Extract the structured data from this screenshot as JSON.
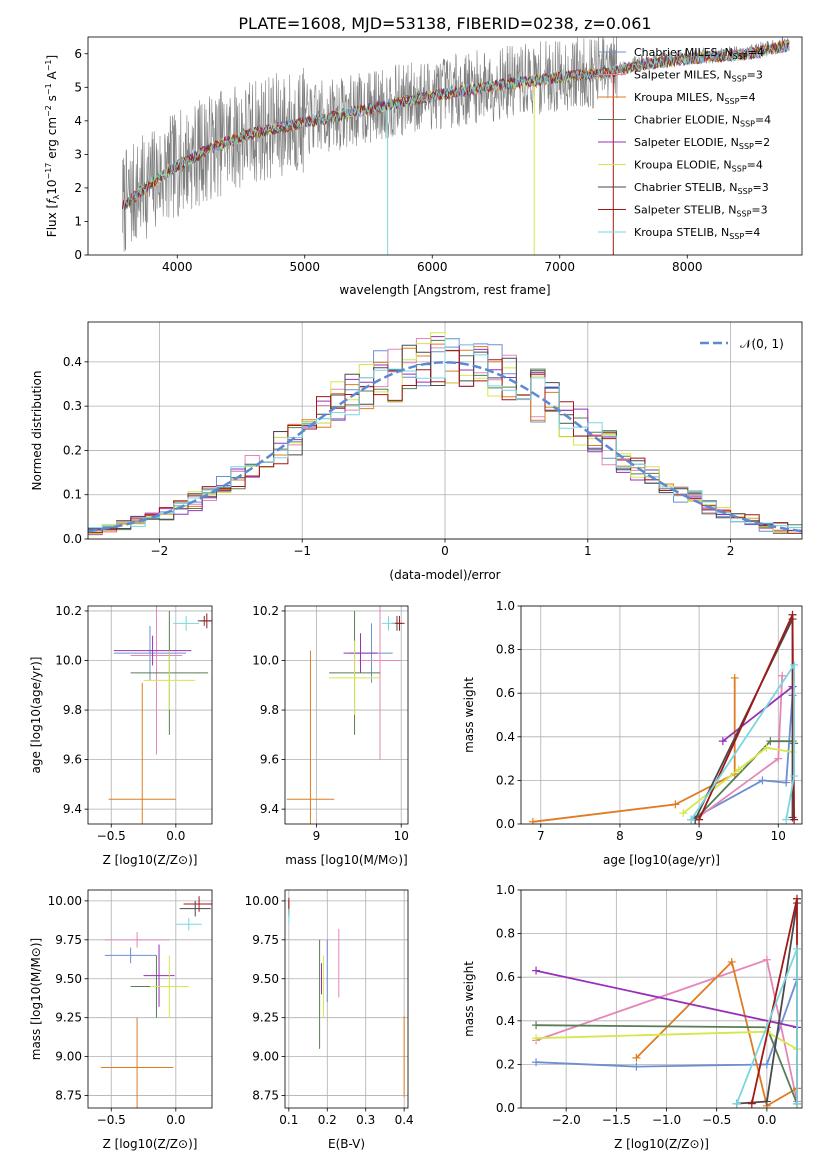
{
  "title": "PLATE=1608, MJD=53138, FIBERID=0238, z=0.061",
  "colors": {
    "chab_miles": "#6a8fd2",
    "salp_miles": "#e487b8",
    "krou_miles": "#e07b21",
    "chab_elodie": "#567e56",
    "salp_elodie": "#9730b8",
    "krou_elodie": "#d4e84a",
    "chab_stelib": "#4a4a4a",
    "salp_stelib": "#a01818",
    "krou_stelib": "#7ad6e0",
    "data": "#7f7f7f",
    "normal": "#5a8ad6"
  },
  "chart_data": [
    {
      "id": "spectrum",
      "type": "line",
      "xlabel": "wavelength [Angstrom, rest frame]",
      "ylabel": "Flux [f_λ10^-17 erg cm^-2 s^-1 A^-1]",
      "xlim": [
        3300,
        8900
      ],
      "ylim": [
        0,
        6.5
      ],
      "xticks": [
        4000,
        5000,
        6000,
        7000,
        8000
      ],
      "yticks": [
        0,
        1,
        2,
        3,
        4,
        5,
        6
      ],
      "grid": false,
      "legend_position": "right",
      "continuum": {
        "x": [
          3570,
          3800,
          4000,
          4300,
          4600,
          5000,
          5500,
          6000,
          6500,
          7000,
          7400,
          7600,
          8000,
          8500,
          8800
        ],
        "y": [
          1.5,
          2.2,
          2.7,
          3.3,
          3.7,
          4.0,
          4.4,
          4.8,
          5.1,
          5.35,
          5.5,
          5.7,
          5.9,
          6.05,
          6.3
        ]
      },
      "legend": [
        {
          "label": "Chabrier MILES, N_SSP=4",
          "color_key": "chab_miles"
        },
        {
          "label": "Salpeter MILES, N_SSP=3",
          "color_key": "salp_miles"
        },
        {
          "label": "Kroupa MILES, N_SSP=4",
          "color_key": "krou_miles"
        },
        {
          "label": "Chabrier ELODIE, N_SSP=4",
          "color_key": "chab_elodie"
        },
        {
          "label": "Salpeter ELODIE, N_SSP=2",
          "color_key": "salp_elodie"
        },
        {
          "label": "Kroupa ELODIE, N_SSP=4",
          "color_key": "krou_elodie"
        },
        {
          "label": "Chabrier STELIB, N_SSP=3",
          "color_key": "chab_stelib"
        },
        {
          "label": "Salpeter STELIB, N_SSP=3",
          "color_key": "salp_stelib"
        },
        {
          "label": "Kroupa STELIB, N_SSP=4",
          "color_key": "krou_stelib"
        }
      ]
    },
    {
      "id": "residuals",
      "type": "bar",
      "xlabel": "(data-model)/error",
      "ylabel": "Normed distribution",
      "xlim": [
        -2.5,
        2.5
      ],
      "ylim": [
        0,
        0.49
      ],
      "xticks": [
        -2,
        -1,
        0,
        1,
        2
      ],
      "yticks": [
        0.0,
        0.1,
        0.2,
        0.3,
        0.4
      ],
      "grid": true,
      "legend_position": "top-right",
      "legend": [
        {
          "label": "𝒩(0, 1)",
          "color_key": "normal"
        }
      ]
    },
    {
      "id": "age_vs_z",
      "type": "scatter",
      "xlabel": "Z [log10(Z/Z⊙)]",
      "ylabel": "age  [log10(age/yr)]",
      "xlim": [
        -0.68,
        0.28
      ],
      "ylim": [
        9.34,
        10.22
      ],
      "xticks": [
        -0.5,
        0.0
      ],
      "xticklabels": [
        "−0.5",
        "0.0"
      ],
      "yticks": [
        9.4,
        9.6,
        9.8,
        10.0,
        10.2
      ],
      "grid": true,
      "points": [
        {
          "color_key": "chab_miles",
          "x": -0.2,
          "y": 10.03,
          "xerr": 0.28,
          "yerr": 0.11
        },
        {
          "color_key": "salp_miles",
          "x": -0.15,
          "y": 10.02,
          "xerr": 0.2,
          "yerr": 0.4
        },
        {
          "color_key": "krou_miles",
          "x": -0.26,
          "y": 9.44,
          "xerr": 0.26,
          "yerr": 0.47
        },
        {
          "color_key": "chab_elodie",
          "x": -0.05,
          "y": 9.95,
          "xerr": 0.3,
          "yerr": 0.25
        },
        {
          "color_key": "salp_elodie",
          "x": -0.18,
          "y": 10.04,
          "xerr": 0.3,
          "yerr": 0.06
        },
        {
          "color_key": "krou_elodie",
          "x": -0.05,
          "y": 9.92,
          "xerr": 0.2,
          "yerr": 0.12
        },
        {
          "color_key": "chab_stelib",
          "x": 0.22,
          "y": 10.16,
          "xerr": 0.05,
          "yerr": 0.02
        },
        {
          "color_key": "salp_stelib",
          "x": 0.24,
          "y": 10.16,
          "xerr": 0.05,
          "yerr": 0.03
        },
        {
          "color_key": "krou_stelib",
          "x": 0.08,
          "y": 10.15,
          "xerr": 0.1,
          "yerr": 0.03
        }
      ]
    },
    {
      "id": "age_vs_mass",
      "type": "scatter",
      "xlabel": "mass [log10(M/M⊙)]",
      "ylabel": "",
      "xlim": [
        8.63,
        10.08
      ],
      "ylim": [
        9.34,
        10.22
      ],
      "xticks": [
        9,
        10
      ],
      "yticks": [
        9.4,
        9.6,
        9.8,
        10.0,
        10.2
      ],
      "grid": true,
      "points": [
        {
          "color_key": "chab_miles",
          "x": 9.65,
          "y": 10.03,
          "xerr": 0.25,
          "yerr": 0.12
        },
        {
          "color_key": "salp_miles",
          "x": 9.75,
          "y": 10.0,
          "xerr": 0.25,
          "yerr": 0.4
        },
        {
          "color_key": "krou_miles",
          "x": 8.93,
          "y": 9.44,
          "xerr": 0.28,
          "yerr": 0.6
        },
        {
          "color_key": "chab_elodie",
          "x": 9.45,
          "y": 9.95,
          "xerr": 0.3,
          "yerr": 0.25
        },
        {
          "color_key": "salp_elodie",
          "x": 9.52,
          "y": 10.03,
          "xerr": 0.2,
          "yerr": 0.08
        },
        {
          "color_key": "krou_elodie",
          "x": 9.45,
          "y": 9.93,
          "xerr": 0.3,
          "yerr": 0.15
        },
        {
          "color_key": "chab_stelib",
          "x": 9.95,
          "y": 10.15,
          "xerr": 0.06,
          "yerr": 0.03
        },
        {
          "color_key": "salp_stelib",
          "x": 9.98,
          "y": 10.15,
          "xerr": 0.06,
          "yerr": 0.03
        },
        {
          "color_key": "krou_stelib",
          "x": 9.85,
          "y": 10.15,
          "xerr": 0.08,
          "yerr": 0.03
        }
      ]
    },
    {
      "id": "weight_vs_age",
      "type": "line",
      "xlabel": "age  [log10(age/yr)]",
      "ylabel": "mass weight",
      "xlim": [
        6.75,
        10.3
      ],
      "ylim": [
        0,
        1.0
      ],
      "xticks": [
        7,
        8,
        9,
        10
      ],
      "yticks": [
        0.0,
        0.2,
        0.4,
        0.6,
        0.8,
        1.0
      ],
      "grid": true,
      "series": [
        {
          "color_key": "chab_miles",
          "x": [
            8.9,
            9.8,
            10.1,
            10.18
          ],
          "y": [
            0.02,
            0.2,
            0.19,
            0.59
          ]
        },
        {
          "color_key": "salp_miles",
          "x": [
            8.95,
            10.0,
            10.05
          ],
          "y": [
            0.02,
            0.3,
            0.68
          ]
        },
        {
          "color_key": "krou_miles",
          "x": [
            6.9,
            8.7,
            9.45,
            9.45
          ],
          "y": [
            0.01,
            0.09,
            0.23,
            0.67
          ]
        },
        {
          "color_key": "chab_elodie",
          "x": [
            8.95,
            9.9,
            10.18,
            10.2
          ],
          "y": [
            0.02,
            0.38,
            0.38,
            0.37
          ]
        },
        {
          "color_key": "salp_elodie",
          "x": [
            9.3,
            10.18
          ],
          "y": [
            0.38,
            0.63
          ]
        },
        {
          "color_key": "krou_elodie",
          "x": [
            8.8,
            9.5,
            9.85,
            10.18
          ],
          "y": [
            0.05,
            0.25,
            0.35,
            0.33
          ]
        },
        {
          "color_key": "chab_stelib",
          "x": [
            8.95,
            10.18,
            10.18
          ],
          "y": [
            0.02,
            0.94,
            0.03
          ]
        },
        {
          "color_key": "salp_stelib",
          "x": [
            9.0,
            10.18,
            10.2
          ],
          "y": [
            0.02,
            0.96,
            0.02
          ]
        },
        {
          "color_key": "krou_stelib",
          "x": [
            8.9,
            10.2,
            10.2,
            10.1
          ],
          "y": [
            0.02,
            0.73,
            0.22,
            0.02
          ]
        }
      ]
    },
    {
      "id": "mass_vs_z",
      "type": "scatter",
      "xlabel": "Z [log10(Z/Z⊙)]",
      "ylabel": "mass [log10(M/M⊙)]",
      "xlim": [
        -0.68,
        0.28
      ],
      "ylim": [
        8.67,
        10.07
      ],
      "xticks": [
        -0.5,
        0.0
      ],
      "xticklabels": [
        "−0.5",
        "0.0"
      ],
      "yticks": [
        8.75,
        9.0,
        9.25,
        9.5,
        9.75,
        10.0
      ],
      "grid": true,
      "points": [
        {
          "color_key": "chab_miles",
          "x": -0.35,
          "y": 9.65,
          "xerr": 0.2,
          "yerr": 0.05
        },
        {
          "color_key": "salp_miles",
          "x": -0.3,
          "y": 9.75,
          "xerr": 0.25,
          "yerr": 0.05
        },
        {
          "color_key": "krou_miles",
          "x": -0.3,
          "y": 8.93,
          "xerr": 0.28,
          "yerr": 0.32
        },
        {
          "color_key": "chab_elodie",
          "x": -0.15,
          "y": 9.45,
          "xerr": 0.2,
          "yerr": 0.2
        },
        {
          "color_key": "salp_elodie",
          "x": -0.13,
          "y": 9.52,
          "xerr": 0.12,
          "yerr": 0.2
        },
        {
          "color_key": "krou_elodie",
          "x": -0.05,
          "y": 9.45,
          "xerr": 0.15,
          "yerr": 0.2
        },
        {
          "color_key": "chab_stelib",
          "x": 0.15,
          "y": 9.95,
          "xerr": 0.12,
          "yerr": 0.05
        },
        {
          "color_key": "salp_stelib",
          "x": 0.18,
          "y": 9.98,
          "xerr": 0.12,
          "yerr": 0.05
        },
        {
          "color_key": "krou_stelib",
          "x": 0.1,
          "y": 9.85,
          "xerr": 0.1,
          "yerr": 0.04
        }
      ]
    },
    {
      "id": "mass_vs_ebv",
      "type": "scatter",
      "xlabel": "E(B-V)",
      "ylabel": "",
      "xlim": [
        0.09,
        0.41
      ],
      "ylim": [
        8.67,
        10.07
      ],
      "xticks": [
        0.1,
        0.2,
        0.3,
        0.4
      ],
      "yticks": [
        8.75,
        9.0,
        9.25,
        9.5,
        9.75,
        10.0
      ],
      "grid": true,
      "points": [
        {
          "color_key": "chab_miles",
          "x": 0.2,
          "y": 9.55,
          "xerr": 0,
          "yerr": 0.2
        },
        {
          "color_key": "salp_miles",
          "x": 0.23,
          "y": 9.6,
          "xerr": 0,
          "yerr": 0.22
        },
        {
          "color_key": "krou_miles",
          "x": 0.4,
          "y": 9.0,
          "xerr": 0,
          "yerr": 0.26
        },
        {
          "color_key": "chab_elodie",
          "x": 0.18,
          "y": 9.4,
          "xerr": 0,
          "yerr": 0.35
        },
        {
          "color_key": "salp_elodie",
          "x": 0.185,
          "y": 9.5,
          "xerr": 0,
          "yerr": 0.1
        },
        {
          "color_key": "krou_elodie",
          "x": 0.19,
          "y": 9.45,
          "xerr": 0,
          "yerr": 0.2
        },
        {
          "color_key": "chab_stelib",
          "x": 0.1,
          "y": 9.95,
          "xerr": 0,
          "yerr": 0.05
        },
        {
          "color_key": "salp_stelib",
          "x": 0.1,
          "y": 9.97,
          "xerr": 0,
          "yerr": 0.05
        },
        {
          "color_key": "krou_stelib",
          "x": 0.1,
          "y": 9.9,
          "xerr": 0,
          "yerr": 0.05
        }
      ]
    },
    {
      "id": "weight_vs_z",
      "type": "line",
      "xlabel": "Z [log10(Z/Z⊙)]",
      "ylabel": "mass weight",
      "xlim": [
        -2.45,
        0.35
      ],
      "ylim": [
        0,
        1.0
      ],
      "xticks": [
        -2.0,
        -1.5,
        -1.0,
        -0.5,
        0.0
      ],
      "xticklabels": [
        "−2.0",
        "−1.5",
        "−1.0",
        "−0.5",
        "0.0"
      ],
      "yticks": [
        0.0,
        0.2,
        0.4,
        0.6,
        0.8,
        1.0
      ],
      "grid": true,
      "series": [
        {
          "color_key": "chab_miles",
          "x": [
            -2.3,
            -1.3,
            0.0,
            0.3
          ],
          "y": [
            0.21,
            0.19,
            0.2,
            0.59
          ]
        },
        {
          "color_key": "salp_miles",
          "x": [
            -2.3,
            0.0,
            0.3
          ],
          "y": [
            0.31,
            0.68,
            0.03
          ]
        },
        {
          "color_key": "krou_miles",
          "x": [
            -1.3,
            -0.35,
            0.0,
            0.3
          ],
          "y": [
            0.23,
            0.67,
            0.01,
            0.09
          ]
        },
        {
          "color_key": "chab_elodie",
          "x": [
            -2.3,
            0.0,
            0.3
          ],
          "y": [
            0.38,
            0.37,
            0.02
          ]
        },
        {
          "color_key": "salp_elodie",
          "x": [
            -2.3,
            0.3
          ],
          "y": [
            0.63,
            0.37
          ]
        },
        {
          "color_key": "krou_elodie",
          "x": [
            -2.3,
            0.0,
            0.3
          ],
          "y": [
            0.32,
            0.35,
            0.27
          ]
        },
        {
          "color_key": "chab_stelib",
          "x": [
            -0.3,
            0.0,
            0.3
          ],
          "y": [
            0.02,
            0.03,
            0.94
          ]
        },
        {
          "color_key": "salp_stelib",
          "x": [
            -0.15,
            0.3,
            0.3
          ],
          "y": [
            0.02,
            0.96,
            0.02
          ]
        },
        {
          "color_key": "krou_stelib",
          "x": [
            -0.3,
            0.3,
            0.3
          ],
          "y": [
            0.02,
            0.73,
            0.02
          ]
        }
      ]
    }
  ]
}
